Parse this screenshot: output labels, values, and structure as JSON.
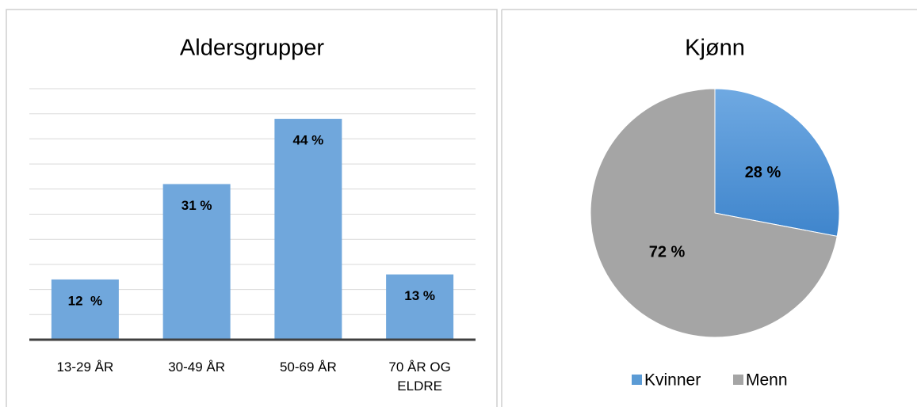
{
  "chart_data": [
    {
      "type": "bar",
      "title": "Aldersgrupper",
      "categories": [
        "13-29 ÅR",
        "30-49 ÅR",
        "50-69 ÅR",
        "70 ÅR OG ELDRE"
      ],
      "values": [
        12,
        31,
        44,
        13
      ],
      "value_labels": [
        "12  %",
        "31 %",
        "44 %",
        "13 %"
      ],
      "color": "#70a7dc",
      "ylim": [
        0,
        50
      ],
      "yticks": [
        0,
        5,
        10,
        15,
        20,
        25,
        30,
        35,
        40,
        45,
        50
      ],
      "grid": true
    },
    {
      "type": "pie",
      "title": "Kjønn",
      "categories": [
        "Kvinner",
        "Menn"
      ],
      "values": [
        28,
        72
      ],
      "value_labels": [
        "28 %",
        "72 %"
      ],
      "colors": [
        "#5b9bd5",
        "#a5a5a5"
      ],
      "legend": "bottom"
    }
  ]
}
